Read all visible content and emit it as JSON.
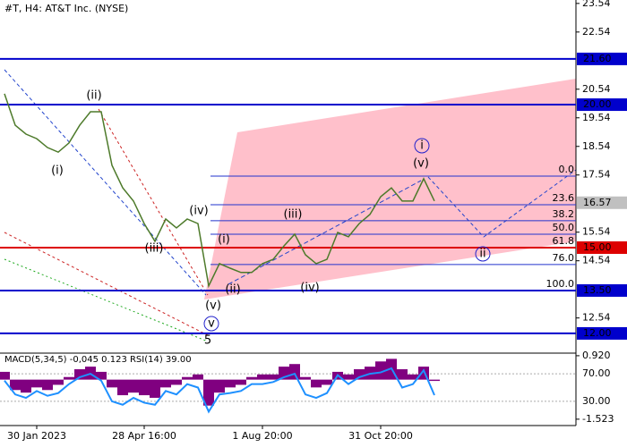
{
  "chart_data": [
    {
      "type": "line",
      "title": "#T, H4:  AT&T Inc. (NYSE)",
      "categories": [
        null,
        null,
        null,
        "30 Jan 2023",
        null,
        null,
        null,
        null,
        null,
        null,
        null,
        null,
        null,
        "28 Apr 16:00",
        null,
        null,
        null,
        null,
        null,
        null,
        null,
        null,
        null,
        null,
        "1 Aug 20:00",
        null,
        null,
        null,
        null,
        null,
        null,
        null,
        null,
        null,
        null,
        "31 Oct 20:00",
        null,
        null,
        null,
        null,
        null
      ],
      "values": [
        20.38,
        19.28,
        18.97,
        18.81,
        18.5,
        18.34,
        18.66,
        19.28,
        19.75,
        19.75,
        17.88,
        17.09,
        16.63,
        15.84,
        15.22,
        16.0,
        15.69,
        16.0,
        15.84,
        13.66,
        14.44,
        14.28,
        14.13,
        14.13,
        14.44,
        14.59,
        15.06,
        15.47,
        14.75,
        14.44,
        14.59,
        15.53,
        15.38,
        15.84,
        16.16,
        16.78,
        17.09,
        16.63,
        16.63,
        17.41,
        16.63
      ],
      "color": "#4d7a2a",
      "ylim": [
        11.31,
        23.66
      ],
      "yticks": [
        23.54,
        22.54,
        20.54,
        19.54,
        18.54,
        17.54,
        15.54,
        14.54,
        12.54
      ],
      "levels": [
        {
          "value": 21.6,
          "label": "21.60",
          "color": "#0000cc"
        },
        {
          "value": 20.0,
          "label": "20.00",
          "color": "#0000cc"
        },
        {
          "value": 15.0,
          "label": "15.00",
          "color": "#dd0000"
        },
        {
          "value": 13.5,
          "label": "13.50",
          "color": "#0000cc"
        },
        {
          "value": 12.0,
          "label": "12.00",
          "color": "#0000cc"
        }
      ],
      "current_price": {
        "value": 16.57,
        "label": "16.57",
        "color": "#c0c0c0"
      },
      "fib_levels": [
        {
          "value": 17.5,
          "label": "0.0"
        },
        {
          "value": 16.5,
          "label": "23.6"
        },
        {
          "value": 15.94,
          "label": "38.2"
        },
        {
          "value": 15.47,
          "label": "50.0"
        },
        {
          "value": 15.0,
          "label": "61.8"
        },
        {
          "value": 14.41,
          "label": "76.0"
        },
        {
          "value": 13.5,
          "label": "100.0"
        }
      ],
      "annotations": [
        {
          "text": "(ii)",
          "color": "#dd2222"
        },
        {
          "text": "(i)",
          "color": "#dd2222"
        },
        {
          "text": "(iii)",
          "color": "#dd2222"
        },
        {
          "text": "(iv)",
          "color": "#dd2222"
        },
        {
          "text": "(i)",
          "color": "#dd2222"
        },
        {
          "text": "(ii)",
          "color": "#dd2222"
        },
        {
          "text": "(iii)",
          "color": "#dd2222"
        },
        {
          "text": "(iv)",
          "color": "#dd2222"
        },
        {
          "text": "(v)",
          "color": "#dd2222"
        },
        {
          "text": "(v)",
          "color": "#dd2222"
        },
        {
          "text": "5",
          "color": "#dd2222"
        },
        {
          "text": "i",
          "color": "#2222cc"
        },
        {
          "text": "ii",
          "color": "#2222cc"
        },
        {
          "text": "v",
          "color": "#2222cc"
        }
      ]
    },
    {
      "type": "macd_rsi",
      "title": "MACD(5,34,5) -0,045 0.123 RSI(14) 39.00",
      "series": [
        {
          "color": "#800080",
          "values": [
            0.3,
            -0.4,
            -0.5,
            -0.3,
            -0.4,
            -0.2,
            0.1,
            0.4,
            0.5,
            0.3,
            -0.3,
            -0.6,
            -0.5,
            -0.6,
            -0.7,
            -0.3,
            -0.2,
            0.1,
            0.2,
            -1.0,
            -0.5,
            -0.3,
            -0.2,
            0.1,
            0.2,
            0.2,
            0.5,
            0.6,
            0.1,
            -0.3,
            -0.2,
            0.3,
            0.2,
            0.4,
            0.5,
            0.7,
            0.8,
            0.4,
            0.2,
            0.5,
            -0.05
          ]
        },
        {
          "color": "#1e90ff",
          "axis": "y2",
          "values": [
            60,
            40,
            35,
            45,
            38,
            42,
            55,
            65,
            70,
            60,
            30,
            25,
            35,
            28,
            25,
            45,
            40,
            55,
            50,
            15,
            40,
            42,
            45,
            55,
            55,
            58,
            65,
            70,
            40,
            35,
            42,
            68,
            55,
            65,
            70,
            72,
            78,
            50,
            55,
            75,
            39
          ]
        }
      ],
      "ylim": [
        -1.63,
        1.02
      ],
      "yticks": [
        {
          "value": 0.92,
          "label": "0.920"
        },
        {
          "value": -1.523,
          "label": "-1.523"
        }
      ],
      "y2lim": [
        0,
        100
      ],
      "y2ticks": [
        {
          "value": 70,
          "label": "70.00"
        },
        {
          "value": 30,
          "label": "30.00"
        }
      ],
      "grid": true
    }
  ]
}
